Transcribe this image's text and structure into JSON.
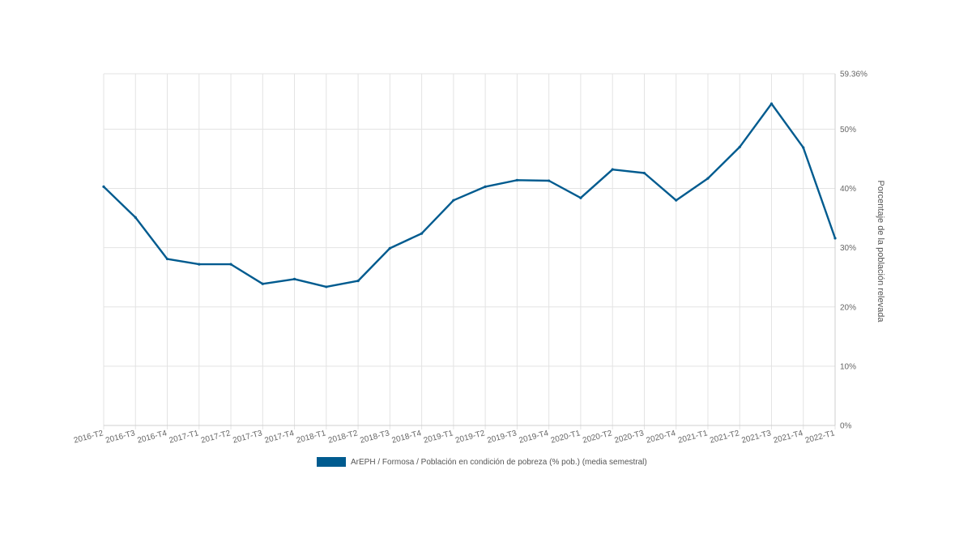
{
  "chart_data": {
    "type": "line",
    "x": [
      "2016-T2",
      "2016-T3",
      "2016-T4",
      "2017-T1",
      "2017-T2",
      "2017-T3",
      "2017-T4",
      "2018-T1",
      "2018-T2",
      "2018-T3",
      "2018-T4",
      "2019-T1",
      "2019-T2",
      "2019-T3",
      "2019-T4",
      "2020-T1",
      "2020-T2",
      "2020-T3",
      "2020-T4",
      "2021-T1",
      "2021-T2",
      "2021-T3",
      "2021-T4",
      "2022-T1"
    ],
    "series": [
      {
        "name": "ArEPH / Formosa / Población en condición de pobreza (% pob.) (media semestral)",
        "color": "#005b8f",
        "values": [
          40.3,
          35.1,
          28.1,
          27.2,
          27.2,
          23.9,
          24.7,
          23.4,
          24.4,
          29.9,
          32.4,
          38.0,
          40.3,
          41.4,
          41.3,
          38.4,
          43.2,
          42.6,
          38.0,
          41.7,
          47.0,
          54.3,
          46.9,
          31.6
        ]
      }
    ],
    "yticks": [
      "0%",
      "10%",
      "20%",
      "30%",
      "40%",
      "50%",
      "59.36%"
    ],
    "ytick_values": [
      0,
      10,
      20,
      30,
      40,
      50,
      59.36
    ],
    "ylim": [
      0,
      59.36
    ],
    "ylabel": "Porcentaje de la población relevada",
    "xlabel": "",
    "title": "",
    "y_axis_side": "right",
    "grid": true,
    "legend_position": "bottom-center"
  }
}
